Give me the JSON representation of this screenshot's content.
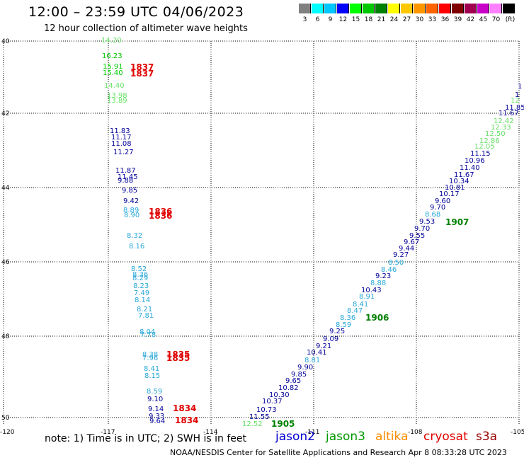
{
  "header": {
    "title": "12:00 – 23:59 UTC 04/06/2023",
    "subtitle": "12 hour collection of altimeter wave heights"
  },
  "legend_scale": {
    "ticks": [
      "3",
      "6",
      "9",
      "12",
      "15",
      "18",
      "21",
      "24",
      "27",
      "30",
      "33",
      "36",
      "39",
      "42",
      "45",
      "70",
      "(ft)"
    ],
    "colors": [
      "#808080",
      "#00ffff",
      "#00c8ff",
      "#0000ff",
      "#00ff00",
      "#00c800",
      "#008000",
      "#ffff00",
      "#ffc800",
      "#ff9600",
      "#ff6400",
      "#ff0000",
      "#800000",
      "#a00050",
      "#c800c8",
      "#ff80ff",
      "#000000"
    ]
  },
  "axes": {
    "lat_labels": [
      "40",
      "42",
      "44",
      "46",
      "48",
      "50"
    ],
    "lon_labels": [
      "-120",
      "-117",
      "-114",
      "-111",
      "-108",
      "-105"
    ]
  },
  "tracks": {
    "west_pass": [
      {
        "v": "14.20",
        "c": "#66e066"
      },
      {
        "v": "16.23",
        "c": "#00c800"
      },
      {
        "v": "15.91",
        "c": "#00c800"
      },
      {
        "v": "15.40",
        "c": "#00c800"
      },
      {
        "v": "14.40",
        "c": "#66e066"
      },
      {
        "v": "13.98",
        "c": "#66e066"
      },
      {
        "v": "13.89",
        "c": "#66e066"
      },
      {
        "v": "11.83",
        "c": "#000099"
      },
      {
        "v": "11.17",
        "c": "#000099"
      },
      {
        "v": "11.08",
        "c": "#000099"
      },
      {
        "v": "11.27",
        "c": "#000099"
      },
      {
        "v": "11.87",
        "c": "#000099"
      },
      {
        "v": "11.45",
        "c": "#000099"
      },
      {
        "v": "9.88",
        "c": "#000099"
      },
      {
        "v": "9.85",
        "c": "#000099"
      },
      {
        "v": "9.42",
        "c": "#000099"
      },
      {
        "v": "8.89",
        "c": "#29a8d8"
      },
      {
        "v": "8.90",
        "c": "#29a8d8"
      },
      {
        "v": "8.32",
        "c": "#29a8d8"
      },
      {
        "v": "8.16",
        "c": "#29a8d8"
      },
      {
        "v": "8.52",
        "c": "#29a8d8"
      },
      {
        "v": "8.36",
        "c": "#29a8d8"
      },
      {
        "v": "8.29",
        "c": "#29a8d8"
      },
      {
        "v": "8.23",
        "c": "#29a8d8"
      },
      {
        "v": "7.49",
        "c": "#29a8d8"
      },
      {
        "v": "8.14",
        "c": "#29a8d8"
      },
      {
        "v": "8.21",
        "c": "#29a8d8"
      },
      {
        "v": "7.81",
        "c": "#29a8d8"
      },
      {
        "v": "8.04",
        "c": "#29a8d8"
      },
      {
        "v": "7.78",
        "c": "#29a8d8"
      },
      {
        "v": "8.38",
        "c": "#29a8d8"
      },
      {
        "v": "7.96",
        "c": "#29a8d8"
      },
      {
        "v": "8.41",
        "c": "#29a8d8"
      },
      {
        "v": "8.15",
        "c": "#29a8d8"
      },
      {
        "v": "8.59",
        "c": "#29a8d8"
      },
      {
        "v": "9.10",
        "c": "#000099"
      },
      {
        "v": "9.14",
        "c": "#000099"
      },
      {
        "v": "9.33",
        "c": "#000099"
      },
      {
        "v": "9.64",
        "c": "#000099"
      }
    ],
    "west_times": [
      {
        "t": "1837",
        "c": "#e00000"
      },
      {
        "t": "1837",
        "c": "#e00000"
      },
      {
        "t": "1836",
        "c": "#e00000"
      },
      {
        "t": "1836",
        "c": "#e00000"
      },
      {
        "t": "1835",
        "c": "#e00000"
      },
      {
        "t": "1835",
        "c": "#e00000"
      },
      {
        "t": "1834",
        "c": "#e00000"
      },
      {
        "t": "1834",
        "c": "#e00000"
      }
    ],
    "east_pass": [
      {
        "v": "1",
        "c": "#000099"
      },
      {
        "v": "1",
        "c": "#000099"
      },
      {
        "v": "12",
        "c": "#66e066"
      },
      {
        "v": "11.85",
        "c": "#000099"
      },
      {
        "v": "11.67",
        "c": "#000099"
      },
      {
        "v": "12.42",
        "c": "#66e066"
      },
      {
        "v": "12.33",
        "c": "#66e066"
      },
      {
        "v": "12.50",
        "c": "#66e066"
      },
      {
        "v": "12.86",
        "c": "#66e066"
      },
      {
        "v": "12.05",
        "c": "#66e066"
      },
      {
        "v": "11.15",
        "c": "#000099"
      },
      {
        "v": "10.96",
        "c": "#000099"
      },
      {
        "v": "11.40",
        "c": "#000099"
      },
      {
        "v": "11.67",
        "c": "#000099"
      },
      {
        "v": "10.34",
        "c": "#000099"
      },
      {
        "v": "10.81",
        "c": "#000099"
      },
      {
        "v": "10.17",
        "c": "#000099"
      },
      {
        "v": "9.60",
        "c": "#000099"
      },
      {
        "v": "9.70",
        "c": "#000099"
      },
      {
        "v": "8.68",
        "c": "#29a8d8"
      },
      {
        "v": "9.53",
        "c": "#000099"
      },
      {
        "v": "9.70",
        "c": "#000099"
      },
      {
        "v": "9.55",
        "c": "#000099"
      },
      {
        "v": "9.67",
        "c": "#000099"
      },
      {
        "v": "9.44",
        "c": "#000099"
      },
      {
        "v": "9.27",
        "c": "#000099"
      },
      {
        "v": "8.50",
        "c": "#29a8d8"
      },
      {
        "v": "8.46",
        "c": "#29a8d8"
      },
      {
        "v": "9.23",
        "c": "#000099"
      },
      {
        "v": "8.88",
        "c": "#29a8d8"
      },
      {
        "v": "10.43",
        "c": "#000099"
      },
      {
        "v": "8.91",
        "c": "#29a8d8"
      },
      {
        "v": "8.41",
        "c": "#29a8d8"
      },
      {
        "v": "8.47",
        "c": "#29a8d8"
      },
      {
        "v": "8.36",
        "c": "#29a8d8"
      },
      {
        "v": "8.59",
        "c": "#29a8d8"
      },
      {
        "v": "9.25",
        "c": "#000099"
      },
      {
        "v": "9.09",
        "c": "#000099"
      },
      {
        "v": "9.21",
        "c": "#000099"
      },
      {
        "v": "10.41",
        "c": "#000099"
      },
      {
        "v": "8.81",
        "c": "#29a8d8"
      },
      {
        "v": "9.90",
        "c": "#000099"
      },
      {
        "v": "9.85",
        "c": "#000099"
      },
      {
        "v": "9.65",
        "c": "#000099"
      },
      {
        "v": "10.82",
        "c": "#000099"
      },
      {
        "v": "10.30",
        "c": "#000099"
      },
      {
        "v": "10.37",
        "c": "#000099"
      },
      {
        "v": "10.73",
        "c": "#000099"
      },
      {
        "v": "11.55",
        "c": "#000099"
      },
      {
        "v": "12.52",
        "c": "#66e066"
      }
    ],
    "east_times": [
      {
        "t": "1907",
        "c": "#008000"
      },
      {
        "t": "1906",
        "c": "#008000"
      },
      {
        "t": "1905",
        "c": "#008000"
      }
    ]
  },
  "footer": {
    "note": "note:  1) Time is in UTC;  2) SWH is in feet",
    "satellites": [
      {
        "name": "jason2",
        "color": "#0000cc"
      },
      {
        "name": "jason3",
        "color": "#009900"
      },
      {
        "name": "altika",
        "color": "#ff8c00"
      },
      {
        "name": "cryosat",
        "color": "#e00000"
      },
      {
        "name": "s3a",
        "color": "#990000"
      }
    ],
    "credit": "NOAA/NESDIS Center for Satellite Applications and Research    Apr  8 08:33:28 UTC 2023"
  }
}
